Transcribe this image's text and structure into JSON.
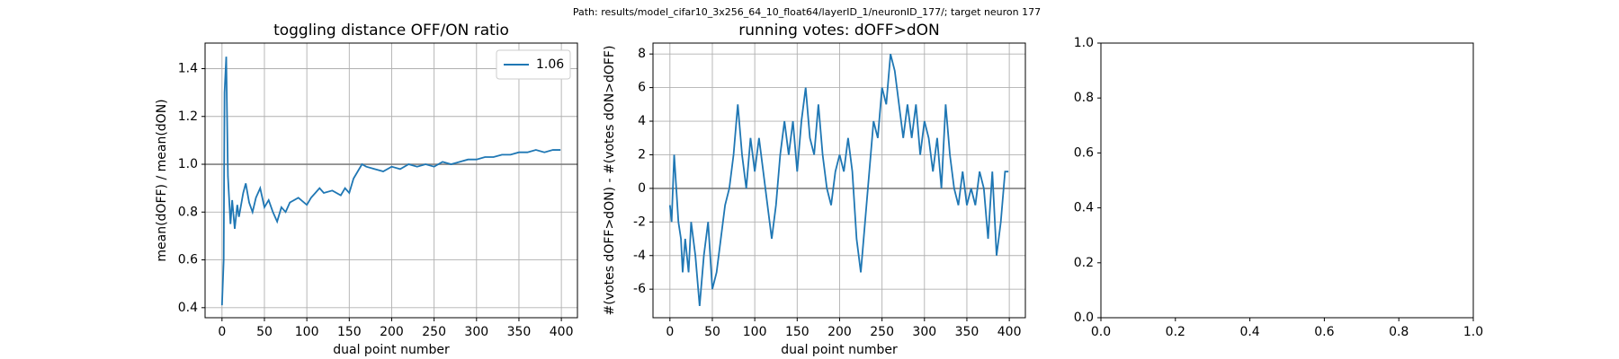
{
  "title": "Path: results/model_cifar10_3x256_64_10_float64/layerID_1/neuronID_177/; target neuron 177",
  "chart_data": [
    {
      "type": "line",
      "title": "toggling distance OFF/ON ratio",
      "xlabel": "dual point number",
      "ylabel": "mean(dOFF) / mean(dON)",
      "x": [
        0,
        2,
        3,
        5,
        7,
        10,
        12,
        15,
        18,
        20,
        25,
        28,
        32,
        36,
        40,
        45,
        50,
        55,
        60,
        65,
        70,
        75,
        80,
        90,
        100,
        105,
        110,
        115,
        120,
        130,
        140,
        145,
        150,
        155,
        160,
        165,
        170,
        180,
        190,
        200,
        210,
        220,
        230,
        240,
        250,
        260,
        270,
        280,
        290,
        300,
        310,
        320,
        330,
        340,
        350,
        360,
        370,
        380,
        390,
        399
      ],
      "series": [
        {
          "name": "1.06",
          "color": "#1f77b4",
          "values": [
            0.41,
            0.6,
            1.3,
            1.45,
            0.95,
            0.75,
            0.85,
            0.73,
            0.83,
            0.78,
            0.88,
            0.92,
            0.84,
            0.8,
            0.86,
            0.9,
            0.82,
            0.85,
            0.8,
            0.76,
            0.82,
            0.8,
            0.84,
            0.86,
            0.83,
            0.86,
            0.88,
            0.9,
            0.88,
            0.89,
            0.87,
            0.9,
            0.88,
            0.94,
            0.97,
            1.0,
            0.99,
            0.98,
            0.97,
            0.99,
            0.98,
            1.0,
            0.99,
            1.0,
            0.99,
            1.01,
            1.0,
            1.01,
            1.02,
            1.02,
            1.03,
            1.03,
            1.04,
            1.04,
            1.05,
            1.05,
            1.06,
            1.05,
            1.06,
            1.06
          ]
        }
      ],
      "hline": 1.0,
      "hline_color": "#808080",
      "xlim": [
        -19.95,
        418.95
      ],
      "xticks": [
        0,
        50,
        100,
        150,
        200,
        250,
        300,
        350,
        400
      ],
      "ylim": [
        0.358,
        1.507
      ],
      "yticks": [
        0.4,
        0.6,
        0.8,
        {
          "value": 1.0,
          "label": "1.0"
        },
        1.2,
        1.4
      ],
      "grid": true,
      "legend": "upper right"
    },
    {
      "type": "line",
      "title": "running votes: dOFF>dON",
      "xlabel": "dual point number",
      "ylabel": "#(votes dOFF>dON) - #(votes dON>dOFF)",
      "x": [
        0,
        2,
        5,
        10,
        13,
        15,
        18,
        22,
        25,
        30,
        35,
        40,
        45,
        50,
        55,
        60,
        65,
        70,
        75,
        80,
        85,
        90,
        95,
        100,
        105,
        110,
        115,
        120,
        125,
        130,
        135,
        140,
        145,
        150,
        155,
        160,
        165,
        170,
        175,
        180,
        185,
        190,
        195,
        200,
        205,
        210,
        215,
        220,
        225,
        230,
        235,
        240,
        245,
        250,
        255,
        260,
        265,
        270,
        275,
        280,
        285,
        290,
        295,
        300,
        305,
        310,
        315,
        320,
        325,
        330,
        335,
        340,
        345,
        350,
        355,
        360,
        365,
        370,
        375,
        380,
        385,
        390,
        395,
        399
      ],
      "series": [
        {
          "color": "#1f77b4",
          "values": [
            -1,
            -2,
            2,
            -2,
            -3,
            -5,
            -3,
            -5,
            -2,
            -4,
            -7,
            -4,
            -2,
            -6,
            -5,
            -3,
            -1,
            0,
            2,
            5,
            2,
            0,
            3,
            1,
            3,
            1,
            -1,
            -3,
            -1,
            2,
            4,
            2,
            4,
            1,
            4,
            6,
            3,
            2,
            5,
            2,
            0,
            -1,
            1,
            2,
            1,
            3,
            1,
            -3,
            -5,
            -2,
            1,
            4,
            3,
            6,
            5,
            8,
            7,
            5,
            3,
            5,
            3,
            5,
            2,
            4,
            3,
            1,
            3,
            0,
            5,
            2,
            0,
            -1,
            1,
            -1,
            0,
            -1,
            1,
            0,
            -3,
            1,
            -4,
            -2,
            1,
            1
          ]
        }
      ],
      "hline": 0,
      "hline_color": "#808080",
      "xlim": [
        -19.95,
        418.95
      ],
      "xticks": [
        0,
        50,
        100,
        150,
        200,
        250,
        300,
        350,
        400
      ],
      "ylim": [
        -7.7,
        8.65
      ],
      "yticks": [
        -6,
        -4,
        -2,
        0,
        2,
        4,
        6,
        8
      ],
      "grid": true
    },
    {
      "type": "line",
      "xlim": [
        0,
        1
      ],
      "xticks": [
        {
          "value": 0,
          "label": "0.0"
        },
        0.2,
        0.4,
        0.6,
        0.8,
        {
          "value": 1,
          "label": "1.0"
        }
      ],
      "ylim": [
        0,
        1
      ],
      "yticks": [
        {
          "value": 0,
          "label": "0.0"
        },
        0.2,
        0.4,
        0.6,
        0.8,
        {
          "value": 1,
          "label": "1.0"
        }
      ],
      "grid": false
    }
  ]
}
